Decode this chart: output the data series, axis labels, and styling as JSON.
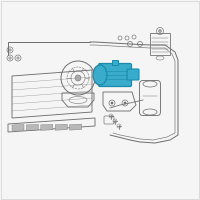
{
  "background_color": "#f5f5f5",
  "line_color": "#707070",
  "highlight_color": "#3aaccb",
  "highlight_dark": "#1a8aab",
  "figsize": [
    2.0,
    2.0
  ],
  "dpi": 100
}
